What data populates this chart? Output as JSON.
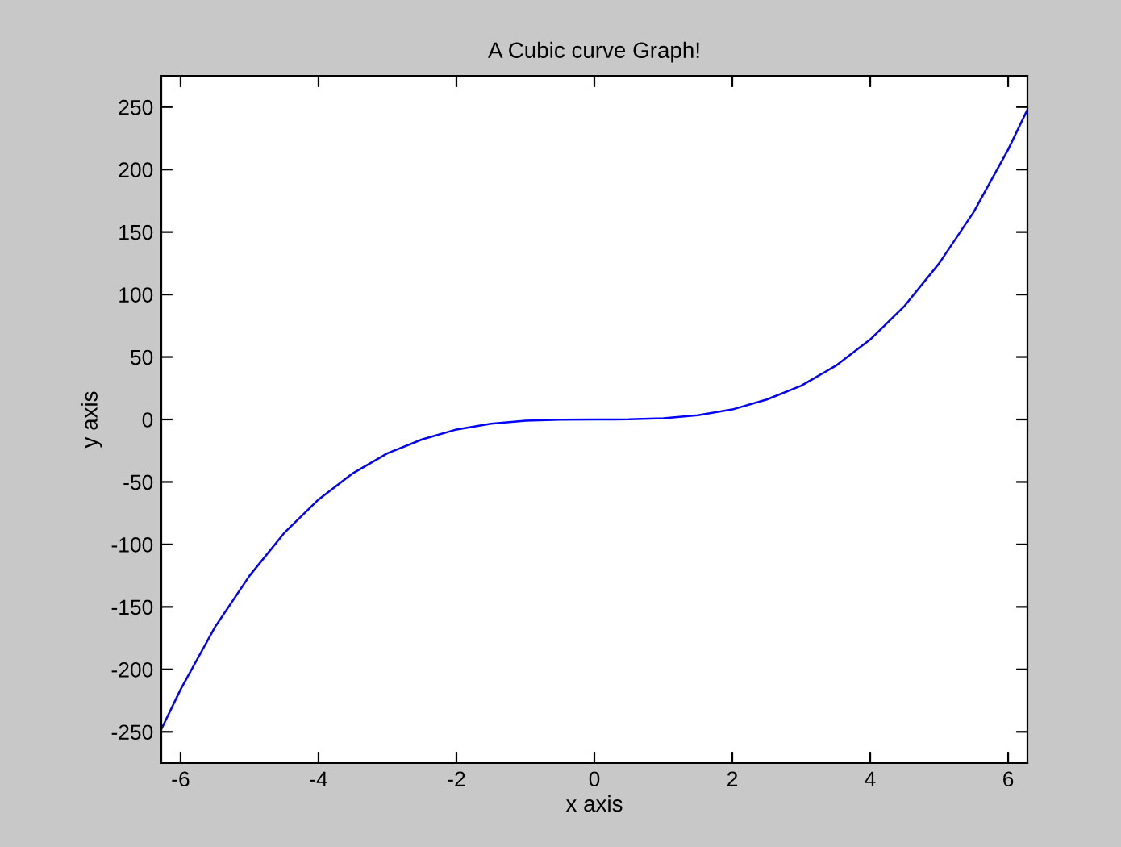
{
  "chart_data": {
    "type": "line",
    "title": "A Cubic curve Graph!",
    "xlabel": "x axis",
    "ylabel": "y axis",
    "x": [
      -6.28,
      -6,
      -5.5,
      -5,
      -4.5,
      -4,
      -3.5,
      -3,
      -2.5,
      -2,
      -1.5,
      -1,
      -0.5,
      0,
      0.5,
      1,
      1.5,
      2,
      2.5,
      3,
      3.5,
      4,
      4.5,
      5,
      5.5,
      6,
      6.28
    ],
    "series": [
      {
        "color": "#0000ff",
        "values": [
          -248,
          -216,
          -166,
          -125,
          -91,
          -64,
          -43,
          -27,
          -16,
          -8,
          -3.4,
          -1,
          -0.1,
          0,
          0.1,
          1,
          3.4,
          8,
          16,
          27,
          43,
          64,
          91,
          125,
          166,
          216,
          248
        ]
      }
    ],
    "xlim": [
      -6.28,
      6.28
    ],
    "ylim": [
      -275,
      275
    ],
    "xticks": [
      {
        "value": -6,
        "label": "-6"
      },
      {
        "value": -4,
        "label": "-4"
      },
      {
        "value": -2,
        "label": "-2"
      },
      0,
      2,
      4,
      6
    ],
    "yticks": [
      {
        "value": -250,
        "label": "-250"
      },
      {
        "value": -200,
        "label": "-200"
      },
      {
        "value": -150,
        "label": "-150"
      },
      {
        "value": -100,
        "label": "-100"
      },
      {
        "value": -50,
        "label": "-50"
      },
      0,
      50,
      100,
      150,
      200,
      250
    ],
    "grid": false,
    "legend": false,
    "marker": "none",
    "line_style": "solid"
  }
}
